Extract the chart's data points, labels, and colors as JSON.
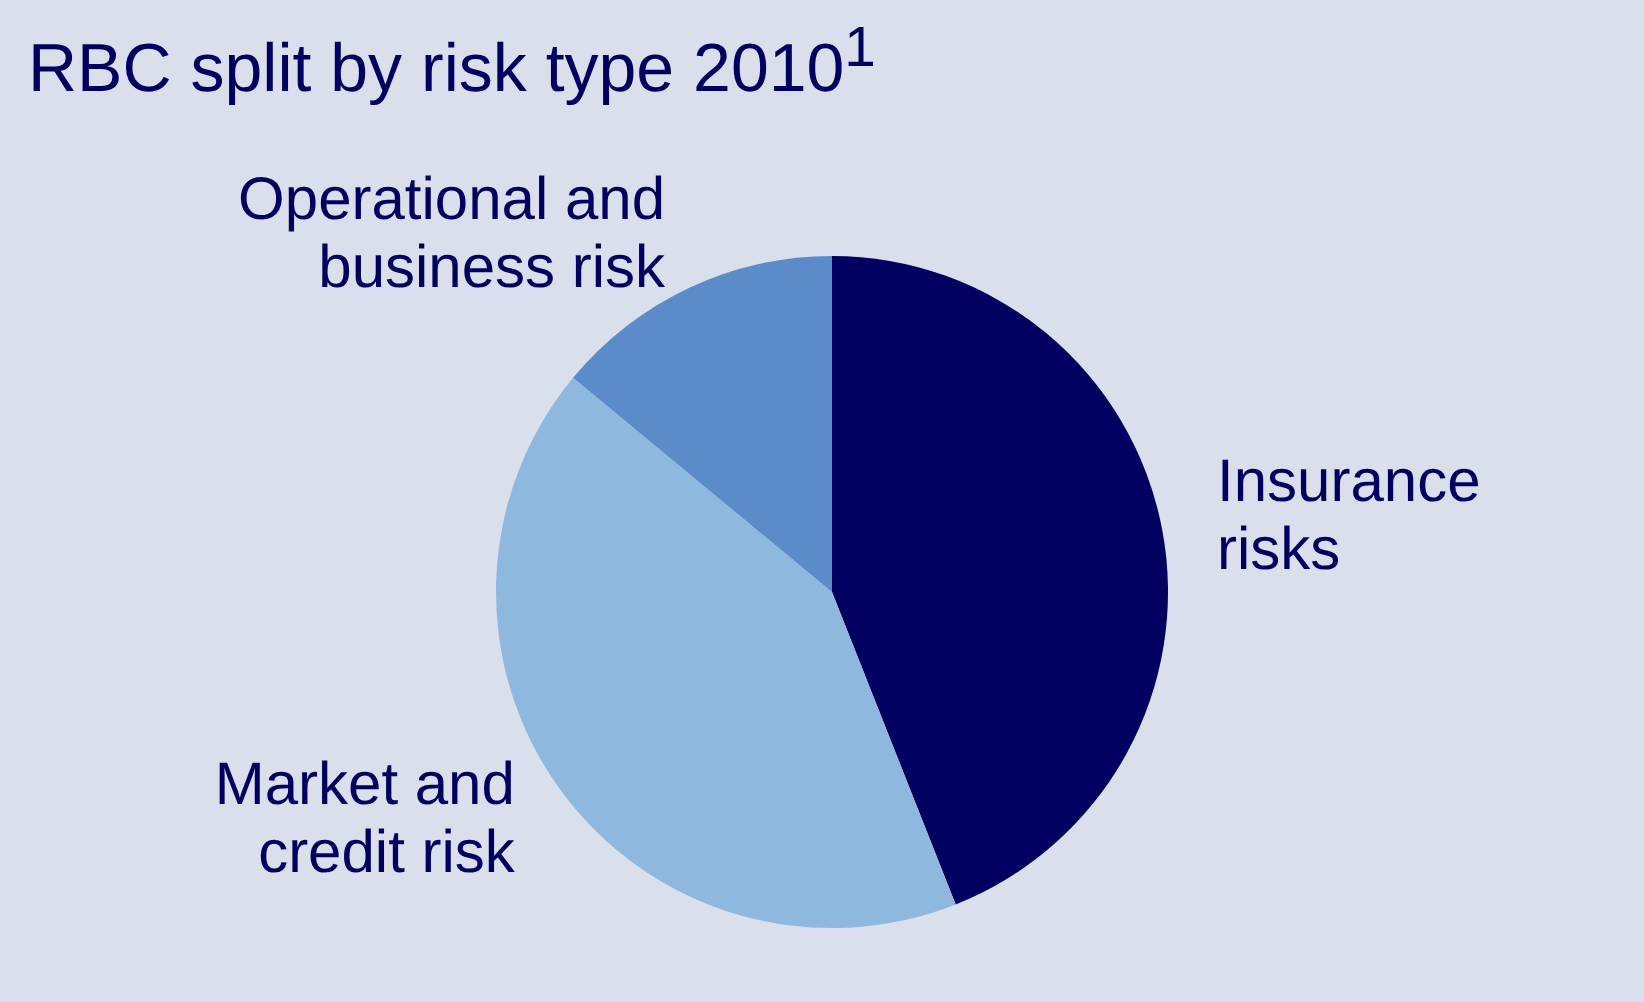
{
  "chart_data": {
    "type": "pie",
    "title": "RBC split by risk type 2010$^{1}$",
    "categories": [
      "Insurance\nrisks",
      "Market and\ncredit risk",
      "Operational and\nbusiness risk"
    ],
    "values": [
      44,
      42,
      14
    ],
    "colors": [
      "#000060",
      "#8fb8de",
      "#5b8bc8"
    ]
  }
}
